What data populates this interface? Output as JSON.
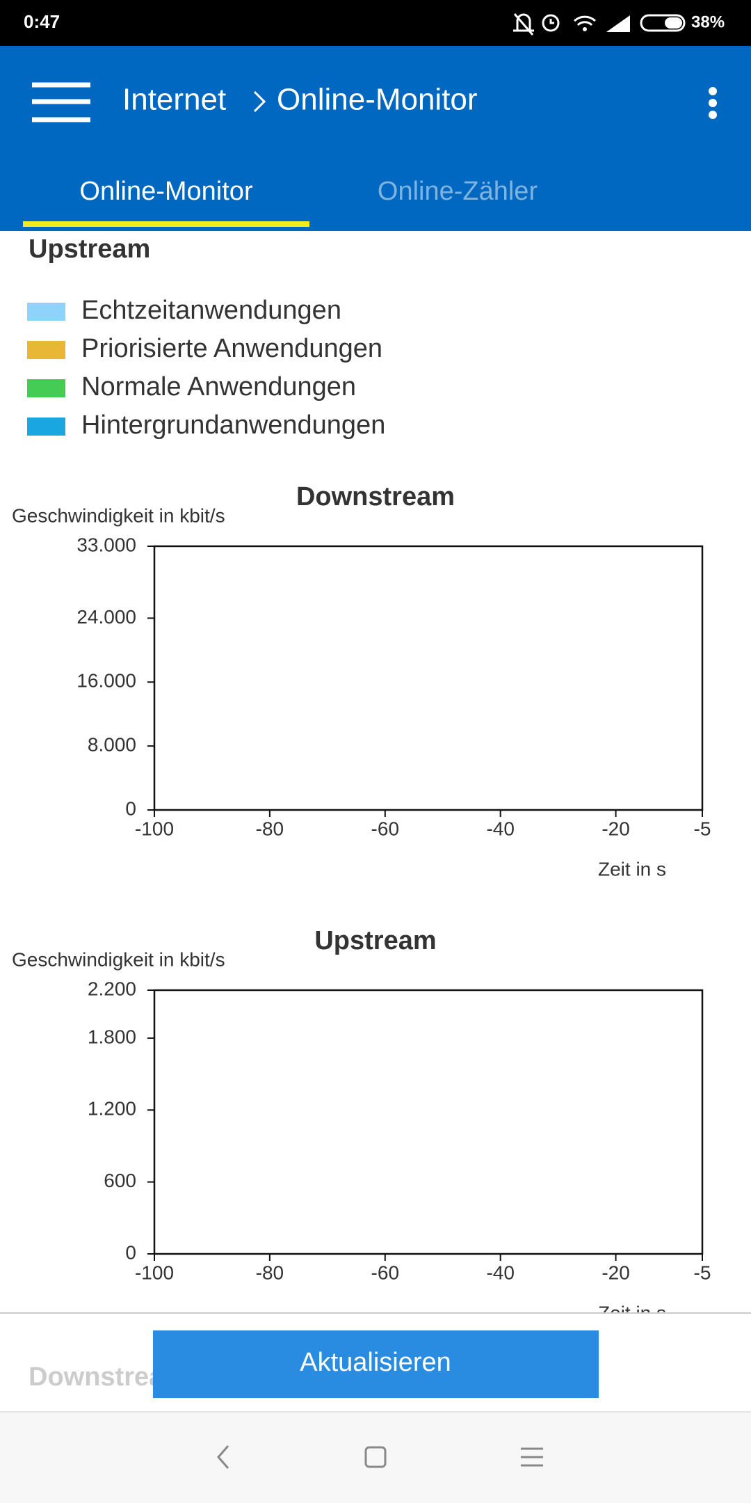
{
  "status_bar": {
    "time": "0:47",
    "battery": "38%"
  },
  "app_bar": {
    "parent": "Internet",
    "title": "Online-Monitor"
  },
  "tabs": [
    "Online-Monitor",
    "Online-Zähler"
  ],
  "section_title": "Upstream",
  "legend": [
    {
      "label": "Echtzeitanwendungen",
      "color": "#8fd3fb"
    },
    {
      "label": "Priorisierte Anwendungen",
      "color": "#e8b735"
    },
    {
      "label": "Normale Anwendungen",
      "color": "#44cc55"
    },
    {
      "label": "Hintergrundanwendungen",
      "color": "#1aa6e0"
    }
  ],
  "chart_data": [
    {
      "type": "line",
      "title": "Downstream",
      "y_label": "Geschwindigkeit in kbit/s",
      "x_label": "Zeit in s",
      "xlim": [
        -100,
        -5
      ],
      "xticks": [
        -100,
        -80,
        -60,
        -40,
        -20,
        -5
      ],
      "ylim": [
        0,
        33000
      ],
      "yticks": [
        0,
        {
          "value": 8000,
          "label": "8.000"
        },
        {
          "value": 16000,
          "label": "16.000"
        },
        {
          "value": 24000,
          "label": "24.000"
        },
        {
          "value": 33000,
          "label": "33.000"
        }
      ]
    },
    {
      "type": "line",
      "title": "Upstream",
      "y_label": "Geschwindigkeit in kbit/s",
      "x_label": "Zeit in s",
      "xlim": [
        -100,
        -5
      ],
      "xticks": [
        -100,
        -80,
        -60,
        -40,
        -20,
        -5
      ],
      "ylim": [
        0,
        2200
      ],
      "yticks": [
        0,
        600,
        {
          "value": 1200,
          "label": "1.200"
        },
        {
          "value": 1800,
          "label": "1.800"
        },
        {
          "value": 2200,
          "label": "2.200"
        }
      ]
    }
  ],
  "next_section": "Downstream",
  "button": "Aktualisieren"
}
